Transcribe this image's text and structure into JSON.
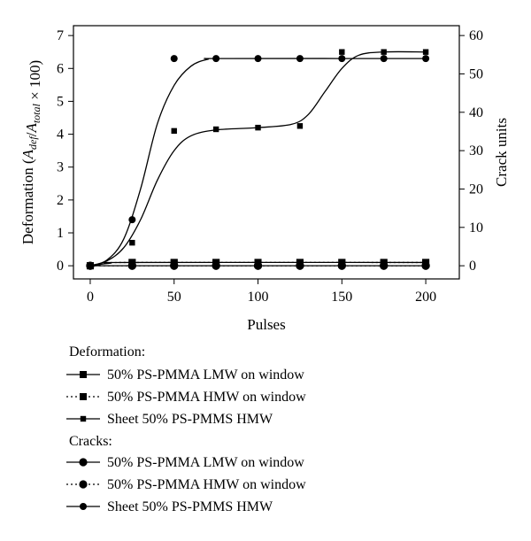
{
  "chart_data": {
    "type": "line",
    "x_axis": {
      "label": "Pulses",
      "min": -10,
      "max": 220,
      "ticks": [
        0,
        50,
        100,
        150,
        200
      ]
    },
    "y_left": {
      "label": "Deformation (A_def/A_total × 100)",
      "min": -0.4,
      "max": 7.3,
      "ticks": [
        0,
        1,
        2,
        3,
        4,
        5,
        6,
        7
      ]
    },
    "y_right": {
      "label": "Crack units",
      "min": -3.43,
      "max": 62.57,
      "ticks": [
        0,
        10,
        20,
        30,
        40,
        50,
        60
      ]
    },
    "legend": {
      "placement": "bottom"
    },
    "legend_groups": [
      {
        "heading": "Deformation:",
        "entries": [
          {
            "label": "50% PS-PMMA LMW on window",
            "line": "solid",
            "marker": "square-large"
          },
          {
            "label": "50% PS-PMMA HMW on window",
            "line": "dotted",
            "marker": "square-large"
          },
          {
            "label": "Sheet 50% PS-PMMS HMW",
            "line": "solid",
            "marker": "square-small"
          }
        ]
      },
      {
        "heading": "Cracks:",
        "entries": [
          {
            "label": "50% PS-PMMA LMW on window",
            "line": "solid",
            "marker": "circle-large"
          },
          {
            "label": "50% PS-PMMA HMW on window",
            "line": "dotted",
            "marker": "circle-large"
          },
          {
            "label": "Sheet 50% PS-PMMS HMW",
            "line": "solid",
            "marker": "circle-small"
          }
        ]
      }
    ],
    "series": [
      {
        "group": "Deformation",
        "name": "50% PS-PMMA LMW on window",
        "axis": "left",
        "marker": "square-large",
        "line": "solid",
        "x": [
          0,
          25,
          50,
          75,
          100,
          125,
          150,
          175,
          200
        ],
        "y": [
          0,
          0.1,
          0.1,
          0.1,
          0.1,
          0.1,
          0.1,
          0.1,
          0.1
        ],
        "curve": [
          [
            0,
            0
          ],
          [
            12,
            0.08
          ],
          [
            25,
            0.1
          ],
          [
            200,
            0.1
          ]
        ]
      },
      {
        "group": "Deformation",
        "name": "50% PS-PMMA HMW on window",
        "axis": "left",
        "marker": "square-large",
        "line": "dotted",
        "x": [
          0,
          25,
          50,
          75,
          100,
          125,
          150,
          175,
          200
        ],
        "y": [
          0,
          0.1,
          0.1,
          0.1,
          0.1,
          0.1,
          0.1,
          0.1,
          0.1
        ],
        "curve": [
          [
            0,
            0
          ],
          [
            12,
            0.08
          ],
          [
            25,
            0.1
          ],
          [
            200,
            0.1
          ]
        ]
      },
      {
        "group": "Deformation",
        "name": "Sheet 50% PS-PMMS HMW",
        "axis": "left",
        "marker": "square-small",
        "line": "solid",
        "x": [
          0,
          25,
          50,
          75,
          100,
          125,
          150,
          175,
          200
        ],
        "y": [
          0,
          0.7,
          4.1,
          4.15,
          4.2,
          4.25,
          6.5,
          6.5,
          6.5
        ],
        "curve": [
          [
            0,
            0
          ],
          [
            10,
            0.15
          ],
          [
            20,
            0.55
          ],
          [
            30,
            1.4
          ],
          [
            40,
            2.6
          ],
          [
            50,
            3.5
          ],
          [
            60,
            3.95
          ],
          [
            75,
            4.13
          ],
          [
            100,
            4.2
          ],
          [
            120,
            4.3
          ],
          [
            130,
            4.6
          ],
          [
            140,
            5.3
          ],
          [
            150,
            6.0
          ],
          [
            160,
            6.4
          ],
          [
            175,
            6.5
          ],
          [
            200,
            6.5
          ]
        ]
      },
      {
        "group": "Cracks",
        "name": "50% PS-PMMA LMW on window",
        "axis": "right",
        "marker": "circle-large",
        "line": "solid",
        "x": [
          0,
          25,
          50,
          75,
          100,
          125,
          150,
          175,
          200
        ],
        "y": [
          0,
          0,
          0,
          0,
          0,
          0,
          0,
          0,
          0
        ],
        "curve": [
          [
            0,
            0
          ],
          [
            200,
            0
          ]
        ]
      },
      {
        "group": "Cracks",
        "name": "50% PS-PMMA HMW on window",
        "axis": "right",
        "marker": "circle-large",
        "line": "dotted",
        "x": [
          0,
          25,
          50,
          75,
          100,
          125,
          150,
          175,
          200
        ],
        "y": [
          0,
          0,
          0,
          0,
          0,
          0,
          0,
          0,
          0
        ],
        "curve": [
          [
            0,
            0
          ],
          [
            200,
            0
          ]
        ]
      },
      {
        "group": "Cracks",
        "name": "Sheet 50% PS-PMMS HMW",
        "axis": "right",
        "marker": "circle-small",
        "line": "solid",
        "x": [
          0,
          25,
          50,
          75,
          100,
          125,
          150,
          175,
          200
        ],
        "y": [
          0,
          12,
          54,
          54,
          54,
          54,
          54,
          54,
          54
        ],
        "curve": [
          [
            0,
            0
          ],
          [
            10,
            1.5
          ],
          [
            20,
            7
          ],
          [
            30,
            20
          ],
          [
            40,
            37
          ],
          [
            50,
            47
          ],
          [
            60,
            52
          ],
          [
            70,
            53.8
          ],
          [
            80,
            54
          ],
          [
            200,
            54
          ]
        ]
      }
    ]
  }
}
